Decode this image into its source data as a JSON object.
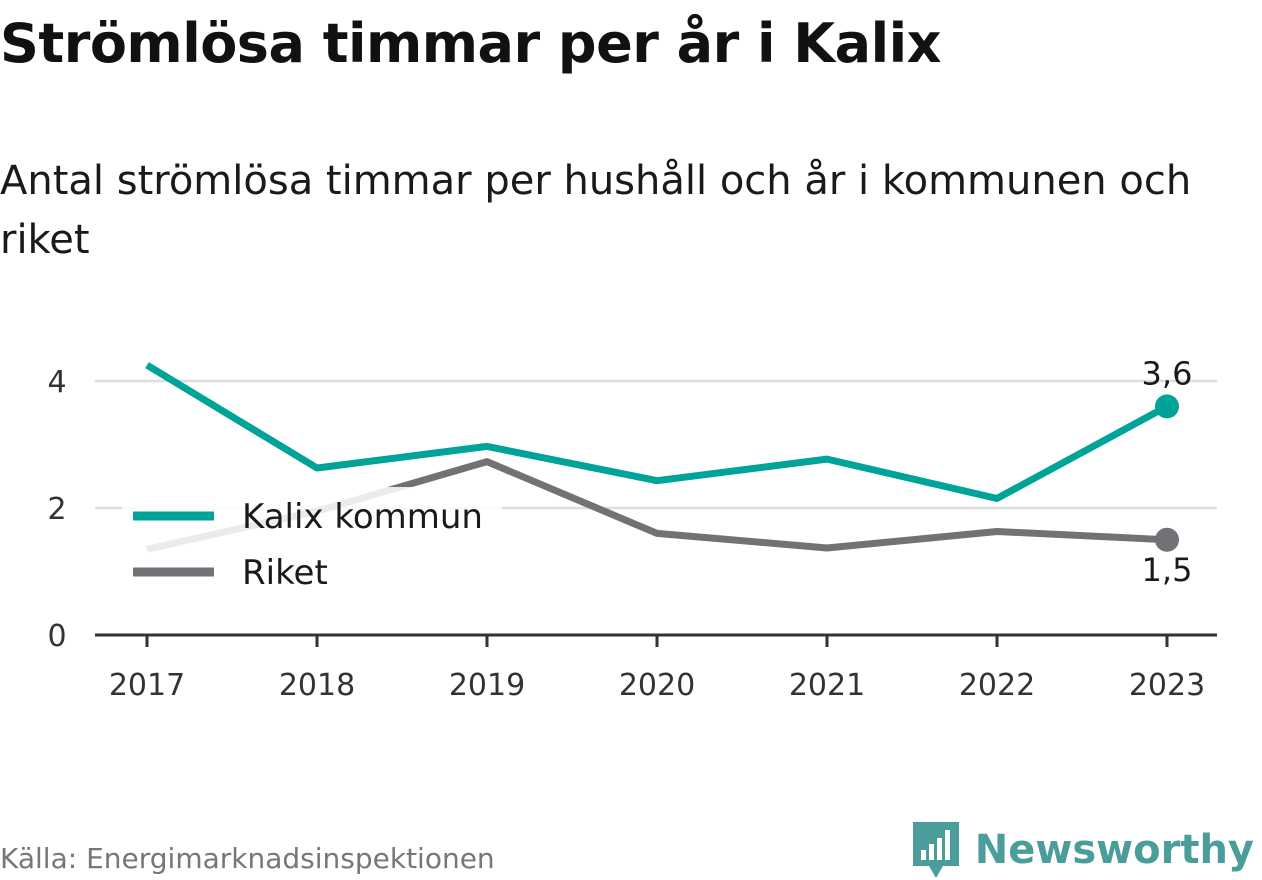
{
  "chart_data": {
    "type": "line",
    "title": "Strömlösa timmar per år i Kalix",
    "subtitle": "Antal strömlösa timmar per hushåll och år i kommunen och riket",
    "x": [
      "2017",
      "2018",
      "2019",
      "2020",
      "2021",
      "2022",
      "2023"
    ],
    "y_ticks": [
      "0",
      "2",
      "4"
    ],
    "ylim": [
      0,
      4.6
    ],
    "grid": true,
    "legend_position": "left, inside plot",
    "series": [
      {
        "name": "Kalix kommun",
        "values": [
          4.25,
          2.63,
          2.97,
          2.43,
          2.77,
          2.15,
          3.6
        ],
        "color": "#00a398",
        "end_label": "3,6"
      },
      {
        "name": "Riket",
        "values": [
          1.35,
          1.95,
          2.73,
          1.6,
          1.37,
          1.63,
          1.5
        ],
        "color": "#727176",
        "end_label": "1,5"
      }
    ]
  },
  "source": "Källa: Energimarknadsinspektionen",
  "brand": {
    "name": "Newsworthy",
    "color": "#4a9d9a",
    "icon": "bar-chart-bubble-icon"
  }
}
